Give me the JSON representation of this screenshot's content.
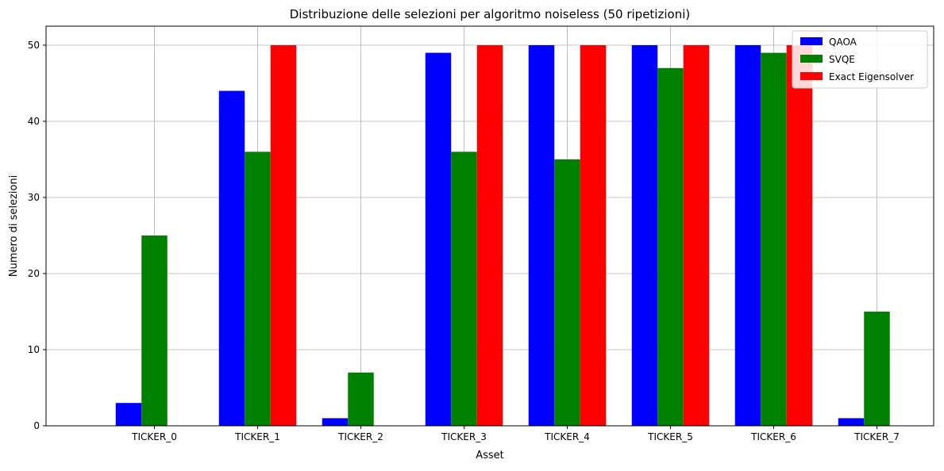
{
  "chart_data": {
    "type": "bar",
    "title": "Distribuzione delle selezioni per algoritmo noiseless (50 ripetizioni)",
    "xlabel": "Asset",
    "ylabel": "Numero di selezioni",
    "categories": [
      "TICKER_0",
      "TICKER_1",
      "TICKER_2",
      "TICKER_3",
      "TICKER_4",
      "TICKER_5",
      "TICKER_6",
      "TICKER_7"
    ],
    "series": [
      {
        "name": "QAOA",
        "color": "#0000ff",
        "values": [
          3,
          44,
          1,
          49,
          50,
          50,
          50,
          1
        ]
      },
      {
        "name": "SVQE",
        "color": "#008000",
        "values": [
          25,
          36,
          7,
          36,
          35,
          47,
          49,
          15
        ]
      },
      {
        "name": "Exact Eigensolver",
        "color": "#ff0000",
        "values": [
          0,
          50,
          0,
          50,
          50,
          50,
          50,
          0
        ]
      }
    ],
    "ylim": [
      0,
      52.5
    ],
    "yticks": [
      0,
      10,
      20,
      30,
      40,
      50
    ],
    "grid": true,
    "legend_position": "top-right"
  }
}
